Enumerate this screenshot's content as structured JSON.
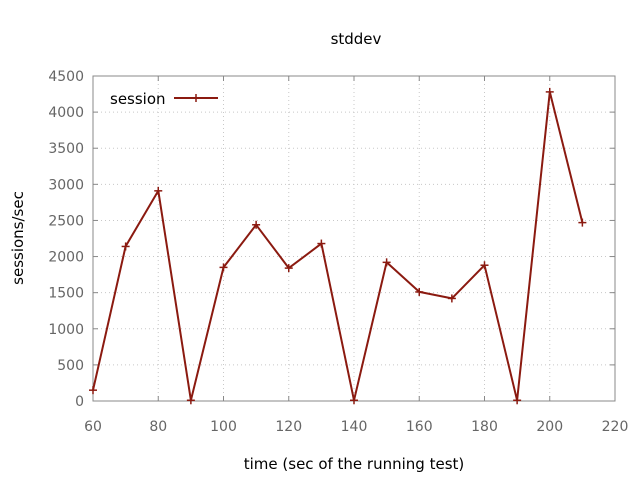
{
  "chart_data": {
    "type": "line",
    "title": "stddev",
    "xlabel": "time (sec of the running test)",
    "ylabel": "sessions/sec",
    "xlim": [
      60,
      220
    ],
    "ylim": [
      0,
      4500
    ],
    "xticks": [
      60,
      80,
      100,
      120,
      140,
      160,
      180,
      200,
      220
    ],
    "yticks": [
      0,
      500,
      1000,
      1500,
      2000,
      2500,
      3000,
      3500,
      4000,
      4500
    ],
    "grid": true,
    "legend_position": "top-left",
    "series": [
      {
        "name": "session",
        "color": "#8b1a10",
        "marker": "plus",
        "x": [
          60,
          70,
          80,
          90,
          100,
          110,
          120,
          130,
          140,
          150,
          160,
          170,
          180,
          190,
          200,
          210
        ],
        "y": [
          150,
          2140,
          2910,
          10,
          1850,
          2440,
          1840,
          2180,
          10,
          1920,
          1510,
          1420,
          1880,
          10,
          4280,
          2470
        ]
      }
    ]
  }
}
